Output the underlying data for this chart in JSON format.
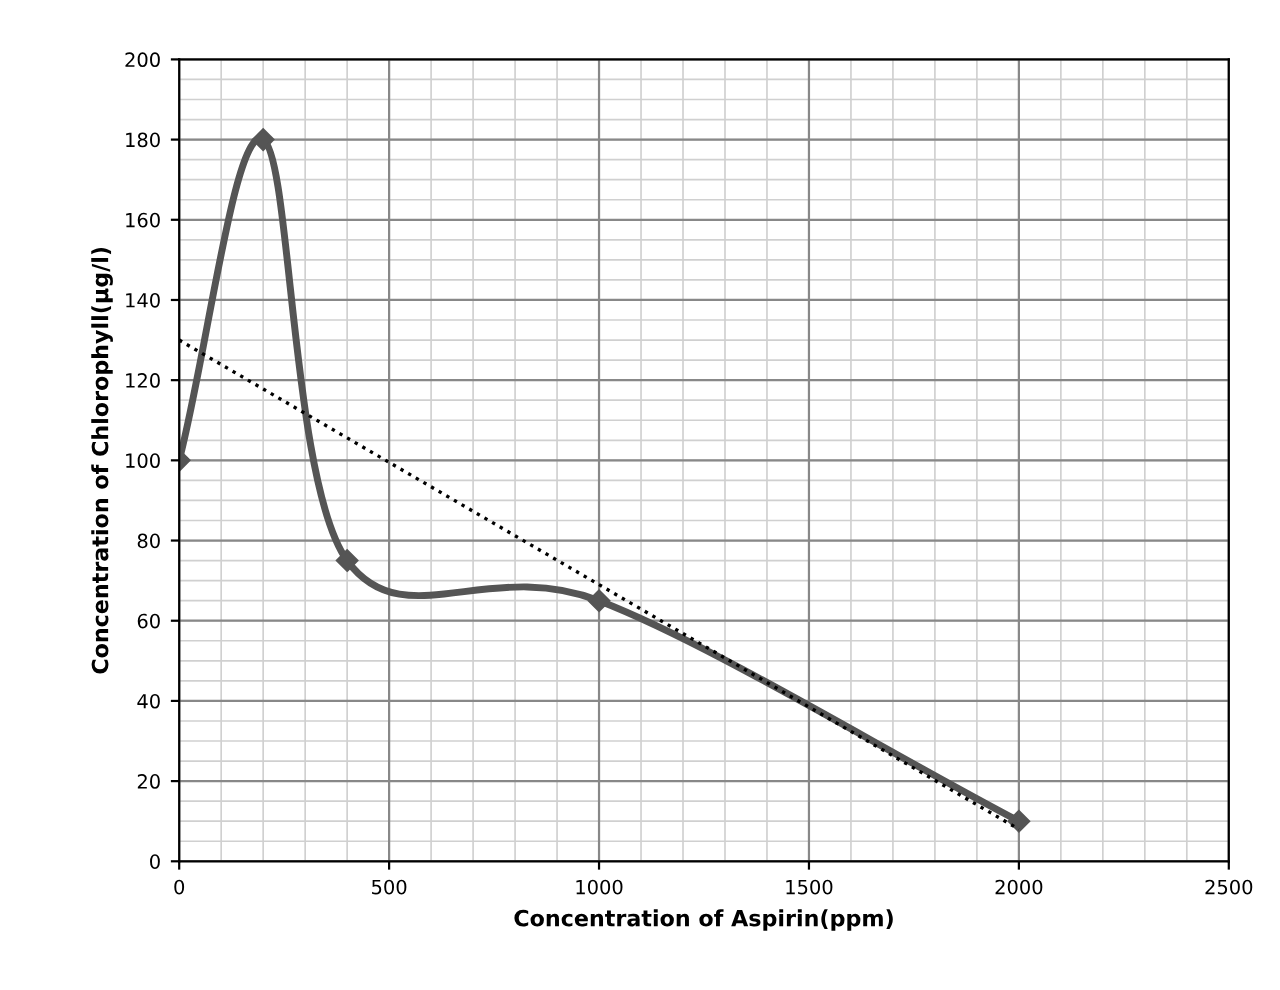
{
  "chart_data": {
    "type": "line",
    "xlabel": "Concentration of Aspirin(ppm)",
    "ylabel": "Concentration of Chlorophyll(µg/l)",
    "series": [
      {
        "x": [
          0,
          200,
          400,
          1000,
          2000
        ],
        "values": [
          100,
          180,
          75,
          65,
          10
        ],
        "color": "#555555",
        "marker": "diamond",
        "line_style": "solid"
      },
      {
        "x": [
          0,
          2000
        ],
        "values": [
          130,
          8
        ],
        "color": "#000000",
        "marker": "none",
        "line_style": "dotted"
      }
    ],
    "xlim": [
      0,
      2500
    ],
    "xticks": [
      0,
      500,
      1000,
      1500,
      2000,
      2500
    ],
    "ylim": [
      0,
      200
    ],
    "yticks": [
      0,
      20,
      40,
      60,
      80,
      100,
      120,
      140,
      160,
      180,
      200
    ],
    "grid": true
  }
}
